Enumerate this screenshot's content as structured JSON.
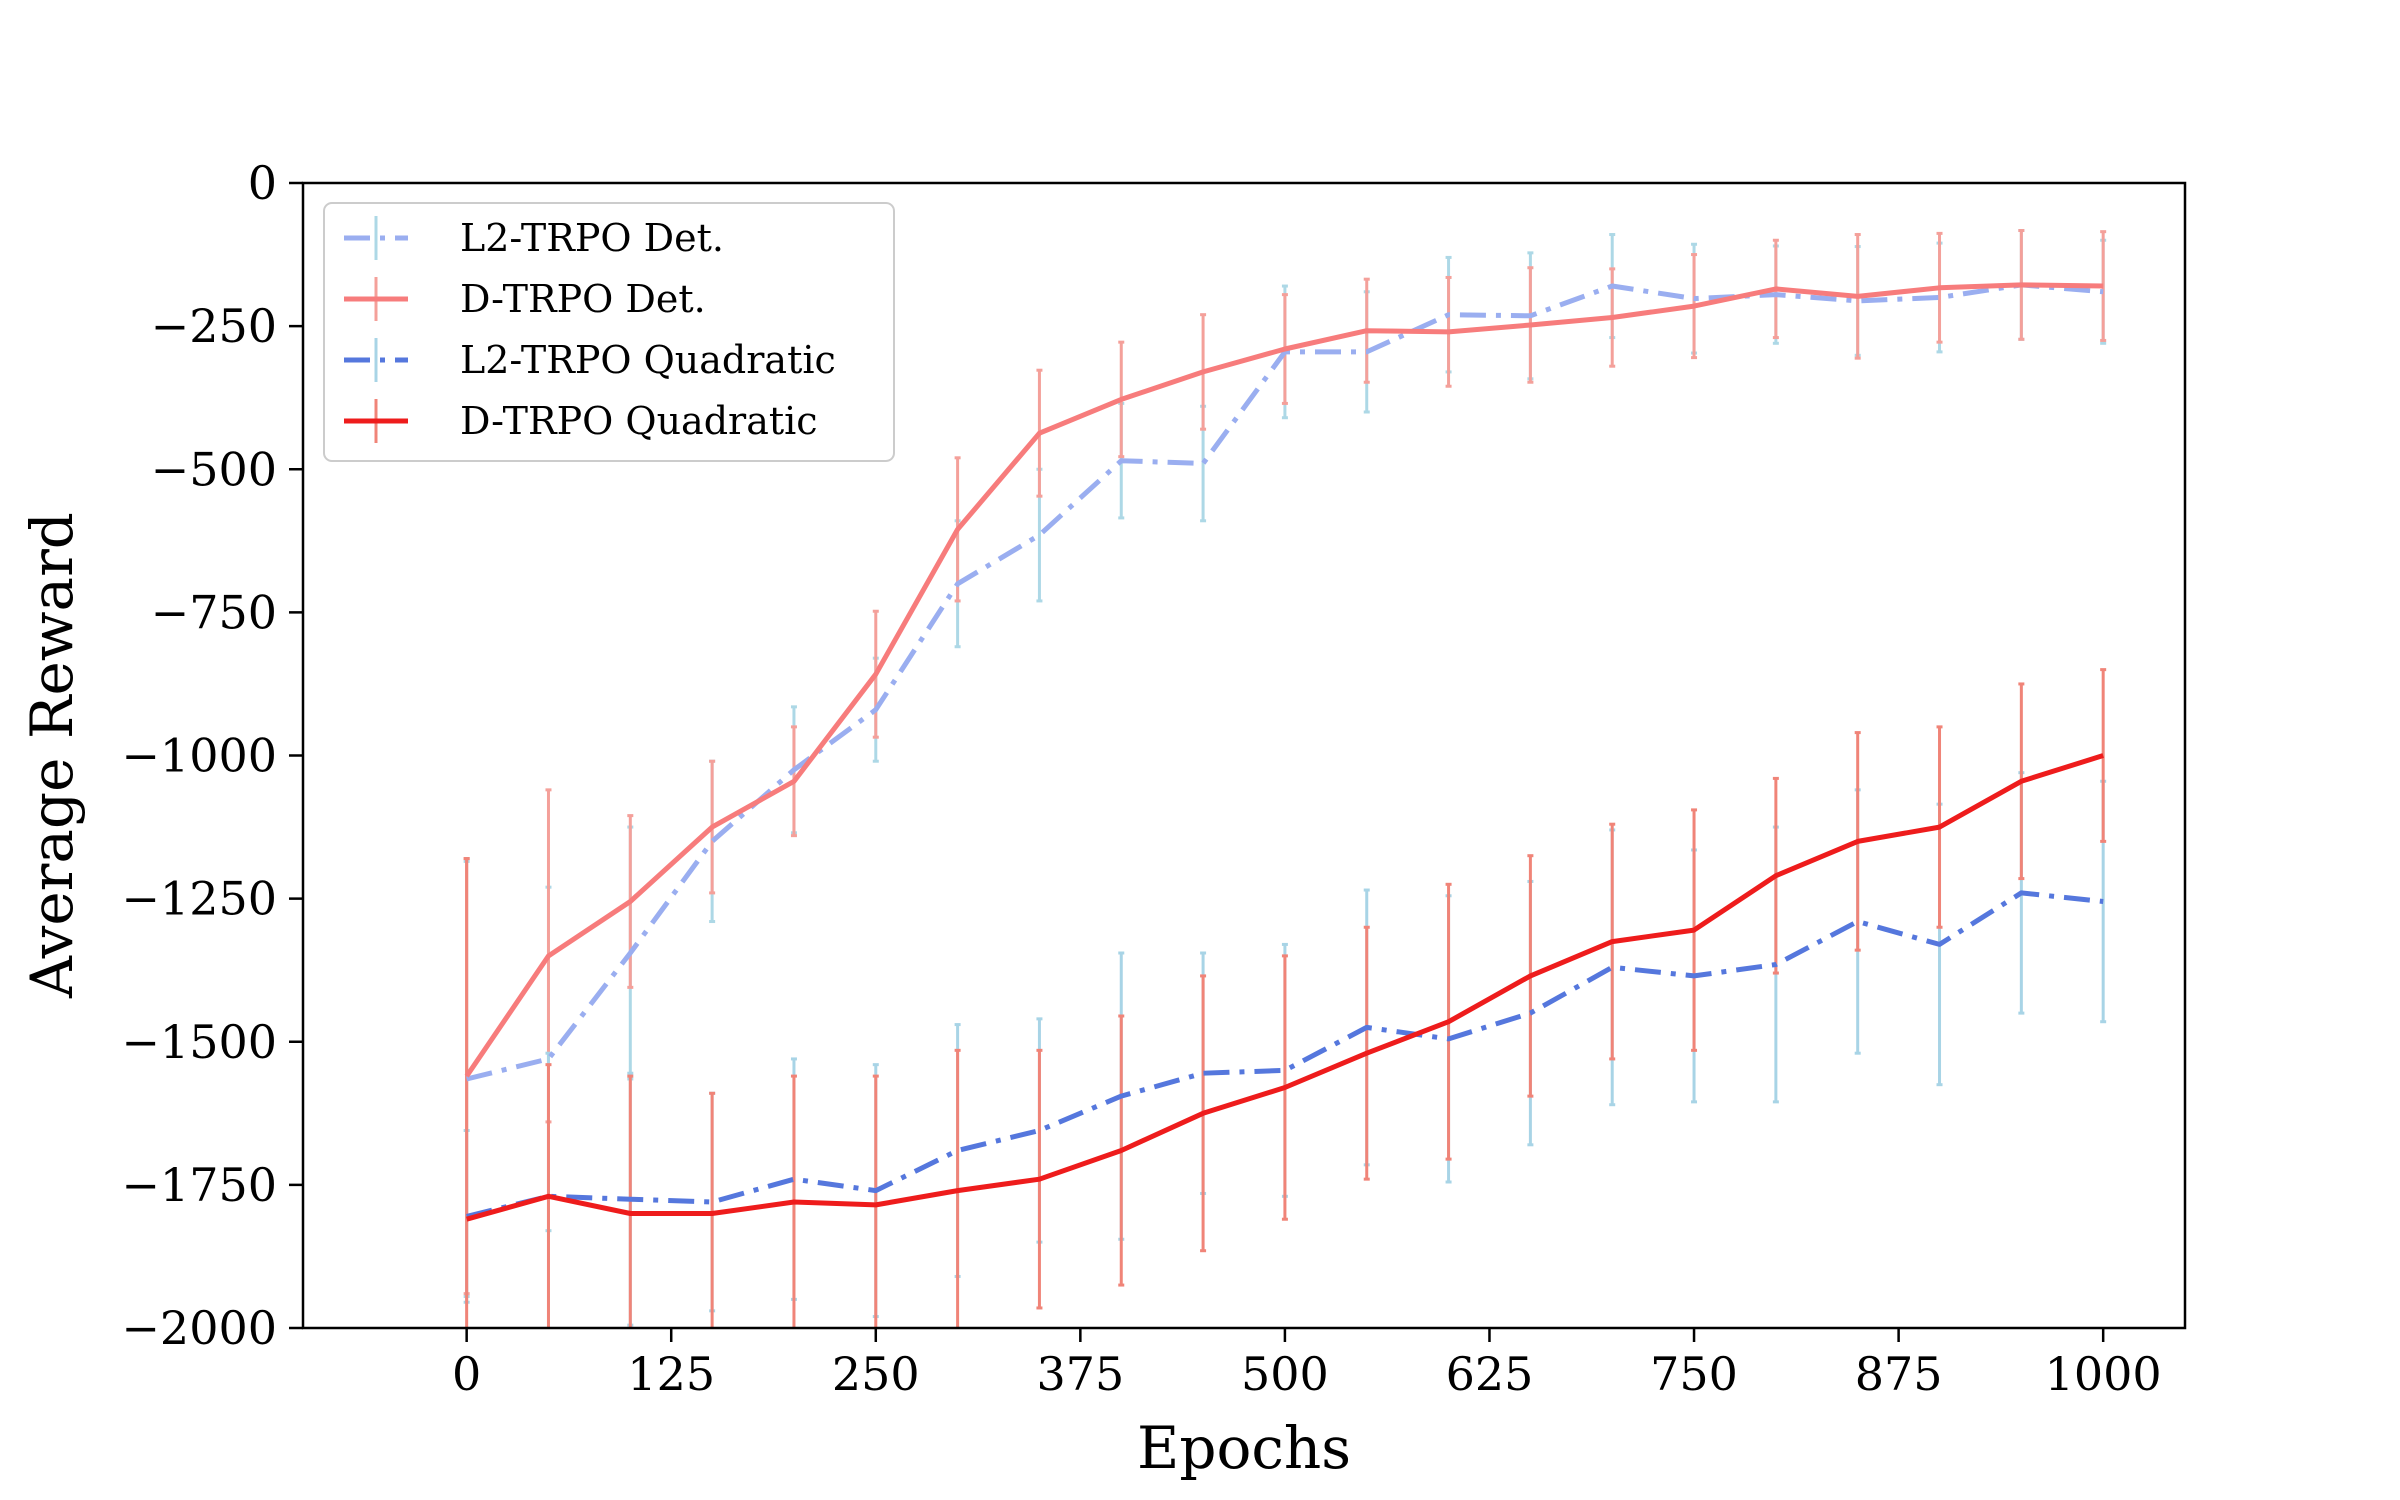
{
  "chart_data": {
    "type": "line",
    "title": "",
    "xlabel": "Epochs",
    "ylabel": "Average Reward",
    "xlim": [
      -100,
      1050
    ],
    "ylim": [
      -2000,
      0
    ],
    "xticks": [
      0,
      125,
      250,
      375,
      500,
      625,
      750,
      875,
      1000
    ],
    "yticks": [
      0,
      -250,
      -500,
      -750,
      -1000,
      -1250,
      -1500,
      -1750,
      -2000
    ],
    "xtick_labels": [
      "0",
      "125",
      "250",
      "375",
      "500",
      "625",
      "750",
      "875",
      "1000"
    ],
    "ytick_labels": [
      "0",
      "−250",
      "−500",
      "−750",
      "−1000",
      "−1250",
      "−1500",
      "−1750",
      "−2000"
    ],
    "grid": false,
    "legend_position": "top-left",
    "x": [
      0,
      50,
      100,
      150,
      200,
      250,
      300,
      350,
      400,
      450,
      500,
      550,
      600,
      650,
      700,
      750,
      800,
      850,
      900,
      950,
      1000
    ],
    "series": [
      {
        "name": "L2-TRPO Det.",
        "color": "#9aaef0",
        "error_color": "#add8e6",
        "dash": "dashdot",
        "values": [
          -1565,
          -1530,
          -1345,
          -1150,
          -1025,
          -920,
          -700,
          -615,
          -485,
          -490,
          -295,
          -295,
          -230,
          -232,
          -180,
          -202,
          -195,
          -206,
          -200,
          -178,
          -190
        ],
        "error": [
          380,
          300,
          220,
          140,
          110,
          90,
          110,
          115,
          100,
          100,
          115,
          105,
          100,
          110,
          90,
          95,
          85,
          95,
          95,
          95,
          90
        ]
      },
      {
        "name": "D-TRPO Det.",
        "color": "#f77c7c",
        "error_color": "#f4a09a",
        "dash": "solid",
        "values": [
          -1560,
          -1350,
          -1255,
          -1125,
          -1045,
          -858,
          -605,
          -437,
          -378,
          -330,
          -290,
          -258,
          -260,
          -248,
          -235,
          -215,
          -185,
          -198,
          -183,
          -178,
          -180
        ],
        "error": [
          380,
          290,
          150,
          115,
          95,
          110,
          125,
          110,
          100,
          100,
          95,
          90,
          95,
          100,
          85,
          90,
          85,
          108,
          95,
          95,
          95
        ]
      },
      {
        "name": "L2-TRPO Quadratic",
        "color": "#5577dd",
        "error_color": "#a8d4e6",
        "dash": "dashdot",
        "values": [
          -1805,
          -1770,
          -1775,
          -1780,
          -1740,
          -1760,
          -1690,
          -1655,
          -1595,
          -1555,
          -1550,
          -1475,
          -1495,
          -1450,
          -1370,
          -1385,
          -1365,
          -1290,
          -1330,
          -1240,
          -1255
        ],
        "error": [
          150,
          250,
          220,
          190,
          210,
          220,
          220,
          195,
          250,
          210,
          220,
          240,
          250,
          230,
          240,
          220,
          240,
          230,
          245,
          210,
          210
        ]
      },
      {
        "name": "D-TRPO Quadratic",
        "color": "#ee1c1c",
        "error_color": "#f08478",
        "dash": "solid",
        "values": [
          -1810,
          -1770,
          -1800,
          -1800,
          -1780,
          -1785,
          -1760,
          -1740,
          -1690,
          -1625,
          -1580,
          -1520,
          -1465,
          -1385,
          -1325,
          -1305,
          -1210,
          -1150,
          -1125,
          -1045,
          -1000
        ],
        "error": [
          630,
          230,
          240,
          210,
          220,
          225,
          245,
          225,
          235,
          240,
          230,
          220,
          240,
          210,
          205,
          210,
          170,
          190,
          175,
          170,
          150
        ]
      }
    ]
  }
}
